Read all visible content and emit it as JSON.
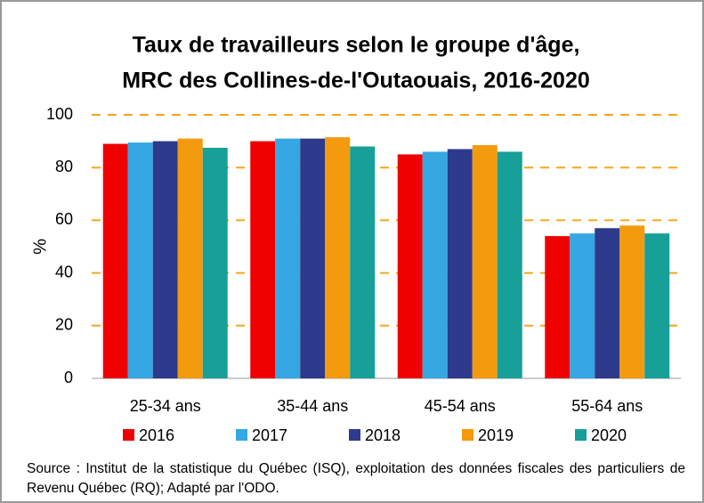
{
  "chart_data": {
    "type": "bar",
    "title": [
      "Taux de travailleurs selon le groupe d'âge,",
      "MRC des Collines-de-l'Outaouais, 2016-2020"
    ],
    "y_label": "%",
    "categories": [
      "25-34 ans",
      "35-44 ans",
      "45-54 ans",
      "55-64 ans"
    ],
    "series": [
      {
        "name": "2016",
        "color": "#ee0000",
        "values": [
          89,
          90,
          85,
          54
        ]
      },
      {
        "name": "2017",
        "color": "#35a7e2",
        "values": [
          89.5,
          91,
          86,
          55
        ]
      },
      {
        "name": "2018",
        "color": "#2e3a8c",
        "values": [
          90,
          91,
          87,
          57
        ]
      },
      {
        "name": "2019",
        "color": "#f39a0f",
        "values": [
          91,
          91.5,
          88.5,
          58
        ]
      },
      {
        "name": "2020",
        "color": "#16a098",
        "values": [
          87.5,
          88,
          86,
          55
        ]
      }
    ],
    "ylim": [
      0,
      100
    ],
    "yticks": [
      0,
      20,
      40,
      60,
      80,
      100
    ],
    "grid": true,
    "grid_color": "#f4a620",
    "source": "Source : Institut de la statistique du Québec (ISQ), exploitation des données fiscales des particuliers de Revenu Québec (RQ); Adapté par l'ODO."
  }
}
